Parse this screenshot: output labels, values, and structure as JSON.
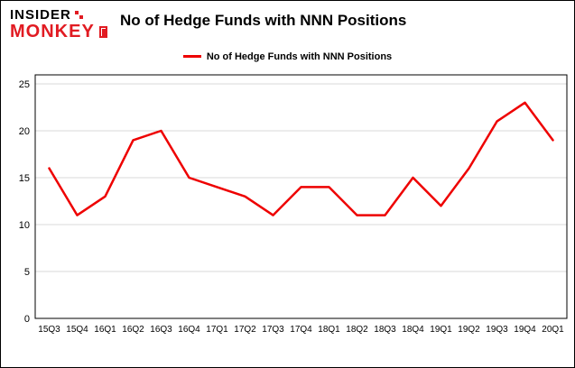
{
  "logo": {
    "line1": "INSIDER",
    "line2": "MONKEY"
  },
  "title": "No of Hedge Funds with NNN Positions",
  "legend": {
    "label": "No of Hedge Funds with NNN Positions"
  },
  "colors": {
    "line": "#ee0000",
    "logo_red": "#e11b22",
    "grid": "#d9d9d9",
    "axis": "#000000",
    "text": "#000000",
    "background": "#ffffff"
  },
  "chart_data": {
    "type": "line",
    "title": "No of Hedge Funds with NNN Positions",
    "series_name": "No of Hedge Funds with NNN Positions",
    "categories": [
      "15Q3",
      "15Q4",
      "16Q1",
      "16Q2",
      "16Q3",
      "16Q4",
      "17Q1",
      "17Q2",
      "17Q3",
      "17Q4",
      "18Q1",
      "18Q2",
      "18Q3",
      "18Q4",
      "19Q1",
      "19Q2",
      "19Q3",
      "19Q4",
      "20Q1"
    ],
    "values": [
      16,
      11,
      13,
      19,
      20,
      15,
      14,
      13,
      11,
      14,
      14,
      11,
      11,
      15,
      12,
      16,
      21,
      23,
      19
    ],
    "xlabel": "",
    "ylabel": "",
    "ylim": [
      0,
      25
    ],
    "yticks": [
      0,
      5,
      10,
      15,
      20,
      25
    ],
    "grid": true,
    "legend_position": "top"
  }
}
